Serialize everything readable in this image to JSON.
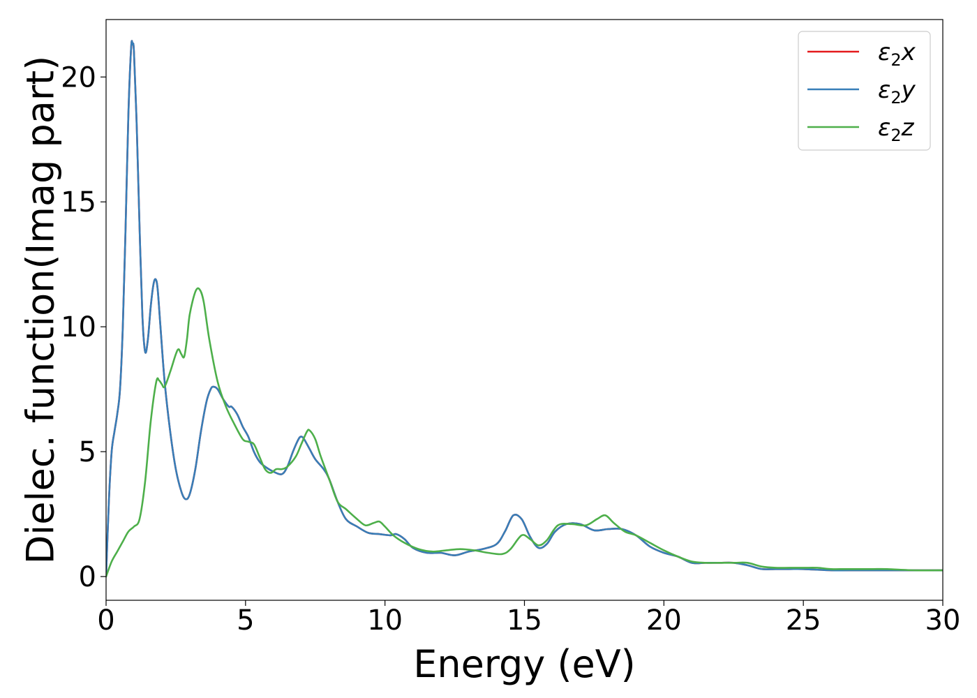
{
  "chart_data": {
    "type": "line",
    "xlabel": "Energy (eV)",
    "ylabel": "Dielec. function(Imag part)",
    "xlim": [
      0,
      30
    ],
    "ylim": [
      -0.95,
      22.3
    ],
    "xticks": [
      0,
      5,
      10,
      15,
      20,
      25,
      30
    ],
    "yticks": [
      0,
      5,
      10,
      15,
      20
    ],
    "xtick_labels": [
      "0",
      "5",
      "10",
      "15",
      "20",
      "25",
      "30"
    ],
    "ytick_labels": [
      "0",
      "5",
      "10",
      "15",
      "20"
    ],
    "grid": false,
    "legend_position": "top-right",
    "series": [
      {
        "name": "ε2x",
        "legend_base": "ε",
        "legend_sub": "2",
        "legend_var": "x",
        "color": "#e41a1c",
        "x": [
          0,
          0.1,
          0.2,
          0.3,
          0.4,
          0.5,
          0.6,
          0.7,
          0.8,
          0.9,
          0.95,
          1.0,
          1.1,
          1.2,
          1.3,
          1.4,
          1.5,
          1.6,
          1.7,
          1.78,
          1.85,
          1.95,
          2.1,
          2.3,
          2.5,
          2.7,
          2.85,
          3.0,
          3.2,
          3.4,
          3.6,
          3.75,
          3.85,
          4.0,
          4.2,
          4.4,
          4.5,
          4.7,
          4.9,
          5.1,
          5.3,
          5.5,
          5.7,
          6.0,
          6.3,
          6.5,
          6.7,
          6.9,
          7.0,
          7.1,
          7.3,
          7.5,
          7.8,
          8.0,
          8.3,
          8.6,
          9.0,
          9.4,
          9.8,
          10.2,
          10.4,
          10.7,
          11.0,
          11.5,
          12.0,
          12.5,
          13.0,
          13.5,
          14.0,
          14.3,
          14.6,
          14.9,
          15.2,
          15.5,
          15.8,
          16.1,
          16.5,
          17.0,
          17.5,
          18.0,
          18.5,
          19.0,
          19.5,
          20.0,
          20.5,
          21.0,
          21.5,
          22.0,
          22.5,
          23.0,
          23.5,
          24.0,
          24.5,
          25.0,
          26.0,
          27.0,
          28.0,
          29.0,
          30.0
        ],
        "y": [
          0.0,
          3.0,
          5.0,
          5.8,
          6.5,
          7.5,
          10.0,
          14.0,
          18.5,
          21.2,
          21.3,
          21.0,
          18.0,
          14.0,
          10.5,
          9.0,
          9.5,
          10.8,
          11.7,
          11.9,
          11.5,
          10.0,
          7.8,
          5.8,
          4.3,
          3.4,
          3.1,
          3.3,
          4.3,
          5.8,
          7.0,
          7.5,
          7.6,
          7.5,
          7.1,
          6.8,
          6.8,
          6.5,
          6.0,
          5.6,
          5.0,
          4.6,
          4.4,
          4.2,
          4.1,
          4.4,
          5.0,
          5.5,
          5.6,
          5.5,
          5.1,
          4.7,
          4.3,
          3.9,
          3.0,
          2.3,
          2.0,
          1.75,
          1.7,
          1.65,
          1.7,
          1.5,
          1.15,
          0.95,
          0.95,
          0.85,
          1.0,
          1.1,
          1.3,
          1.8,
          2.45,
          2.3,
          1.6,
          1.15,
          1.3,
          1.8,
          2.1,
          2.1,
          1.85,
          1.9,
          1.9,
          1.65,
          1.2,
          0.95,
          0.8,
          0.55,
          0.55,
          0.55,
          0.55,
          0.45,
          0.3,
          0.3,
          0.3,
          0.3,
          0.25,
          0.25,
          0.25,
          0.25,
          0.25
        ]
      },
      {
        "name": "ε2y",
        "legend_base": "ε",
        "legend_sub": "2",
        "legend_var": "y",
        "color": "#377eb8",
        "x": [
          0,
          0.1,
          0.2,
          0.3,
          0.4,
          0.5,
          0.6,
          0.7,
          0.8,
          0.9,
          0.95,
          1.0,
          1.1,
          1.2,
          1.3,
          1.4,
          1.5,
          1.6,
          1.7,
          1.78,
          1.85,
          1.95,
          2.1,
          2.3,
          2.5,
          2.7,
          2.85,
          3.0,
          3.2,
          3.4,
          3.6,
          3.75,
          3.85,
          4.0,
          4.2,
          4.4,
          4.5,
          4.7,
          4.9,
          5.1,
          5.3,
          5.5,
          5.7,
          6.0,
          6.3,
          6.5,
          6.7,
          6.9,
          7.0,
          7.1,
          7.3,
          7.5,
          7.8,
          8.0,
          8.3,
          8.6,
          9.0,
          9.4,
          9.8,
          10.2,
          10.4,
          10.7,
          11.0,
          11.5,
          12.0,
          12.5,
          13.0,
          13.5,
          14.0,
          14.3,
          14.6,
          14.9,
          15.2,
          15.5,
          15.8,
          16.1,
          16.5,
          17.0,
          17.5,
          18.0,
          18.5,
          19.0,
          19.5,
          20.0,
          20.5,
          21.0,
          21.5,
          22.0,
          22.5,
          23.0,
          23.5,
          24.0,
          24.5,
          25.0,
          26.0,
          27.0,
          28.0,
          29.0,
          30.0
        ],
        "y": [
          0.0,
          3.0,
          5.0,
          5.8,
          6.5,
          7.5,
          10.0,
          14.0,
          18.5,
          21.2,
          21.3,
          21.0,
          18.0,
          14.0,
          10.5,
          9.0,
          9.5,
          10.8,
          11.7,
          11.9,
          11.5,
          10.0,
          7.8,
          5.8,
          4.3,
          3.4,
          3.1,
          3.3,
          4.3,
          5.8,
          7.0,
          7.5,
          7.6,
          7.5,
          7.1,
          6.8,
          6.8,
          6.5,
          6.0,
          5.6,
          5.0,
          4.6,
          4.4,
          4.2,
          4.1,
          4.4,
          5.0,
          5.5,
          5.6,
          5.5,
          5.1,
          4.7,
          4.3,
          3.9,
          3.0,
          2.3,
          2.0,
          1.75,
          1.7,
          1.65,
          1.7,
          1.5,
          1.15,
          0.95,
          0.95,
          0.85,
          1.0,
          1.1,
          1.3,
          1.8,
          2.45,
          2.3,
          1.6,
          1.15,
          1.3,
          1.8,
          2.1,
          2.1,
          1.85,
          1.9,
          1.9,
          1.65,
          1.2,
          0.95,
          0.8,
          0.55,
          0.55,
          0.55,
          0.55,
          0.45,
          0.3,
          0.3,
          0.3,
          0.3,
          0.25,
          0.25,
          0.25,
          0.25,
          0.25
        ]
      },
      {
        "name": "ε2z",
        "legend_base": "ε",
        "legend_sub": "2",
        "legend_var": "z",
        "color": "#4daf4a",
        "x": [
          0,
          0.2,
          0.4,
          0.6,
          0.8,
          1.0,
          1.2,
          1.4,
          1.6,
          1.8,
          1.9,
          2.0,
          2.1,
          2.3,
          2.5,
          2.6,
          2.7,
          2.8,
          2.9,
          3.0,
          3.2,
          3.35,
          3.5,
          3.7,
          4.0,
          4.3,
          4.6,
          4.9,
          5.1,
          5.3,
          5.5,
          5.7,
          5.9,
          6.1,
          6.3,
          6.5,
          6.8,
          7.0,
          7.2,
          7.3,
          7.5,
          7.7,
          8.0,
          8.3,
          8.6,
          9.0,
          9.3,
          9.6,
          9.8,
          10.0,
          10.3,
          10.7,
          11.2,
          11.7,
          12.2,
          12.7,
          13.2,
          13.7,
          14.2,
          14.5,
          14.9,
          15.2,
          15.5,
          15.8,
          16.2,
          16.7,
          17.2,
          17.6,
          17.9,
          18.2,
          18.6,
          19.0,
          19.5,
          20.0,
          20.5,
          21.0,
          21.5,
          22.0,
          22.5,
          23.0,
          23.5,
          24.0,
          24.5,
          25.0,
          25.5,
          26.0,
          26.5,
          27.0,
          27.5,
          28.0,
          29.0,
          30.0
        ],
        "y": [
          0.0,
          0.6,
          1.0,
          1.4,
          1.8,
          2.0,
          2.3,
          3.8,
          6.2,
          7.8,
          7.85,
          7.7,
          7.6,
          8.2,
          8.9,
          9.1,
          8.9,
          8.8,
          9.5,
          10.5,
          11.4,
          11.5,
          11.0,
          9.5,
          7.8,
          6.8,
          6.1,
          5.5,
          5.4,
          5.3,
          4.8,
          4.3,
          4.15,
          4.3,
          4.3,
          4.4,
          4.8,
          5.3,
          5.8,
          5.85,
          5.5,
          4.8,
          3.9,
          3.0,
          2.7,
          2.3,
          2.05,
          2.15,
          2.2,
          2.0,
          1.65,
          1.35,
          1.1,
          1.0,
          1.05,
          1.1,
          1.05,
          0.95,
          0.9,
          1.1,
          1.65,
          1.5,
          1.25,
          1.45,
          2.05,
          2.1,
          2.05,
          2.3,
          2.45,
          2.15,
          1.8,
          1.65,
          1.35,
          1.05,
          0.8,
          0.6,
          0.55,
          0.55,
          0.55,
          0.55,
          0.4,
          0.35,
          0.35,
          0.35,
          0.35,
          0.3,
          0.3,
          0.3,
          0.3,
          0.3,
          0.25,
          0.25
        ]
      }
    ]
  }
}
